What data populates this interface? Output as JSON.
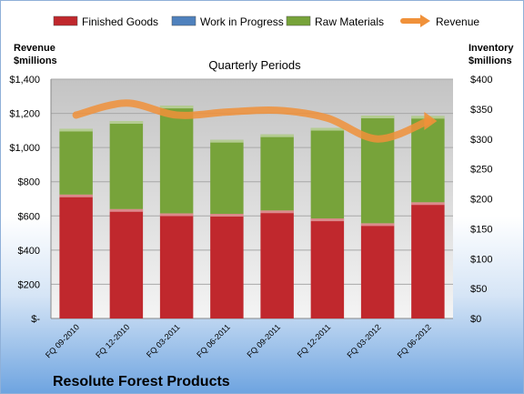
{
  "chart_data": {
    "type": "bar",
    "stacked": true,
    "title": "Quarterly Periods",
    "subtitle": "Resolute Forest Products",
    "categories": [
      "FQ 09-2010",
      "FQ 12-2010",
      "FQ 03-2011",
      "FQ 06-2011",
      "FQ 09-2011",
      "FQ 12-2011",
      "FQ 03-2012",
      "FQ 06-2012"
    ],
    "series": [
      {
        "name": "Finished Goods",
        "color": "#c0282d",
        "axis": "left",
        "values": [
          725,
          640,
          615,
          612,
          632,
          585,
          557,
          680
        ]
      },
      {
        "name": "Work in Progress",
        "color": "#4f81bd",
        "axis": "left",
        "values": [
          0,
          0,
          0,
          0,
          0,
          0,
          0,
          0
        ]
      },
      {
        "name": "Raw Materials",
        "color": "#77a33a",
        "axis": "left",
        "values": [
          385,
          515,
          630,
          433,
          445,
          530,
          630,
          505
        ]
      }
    ],
    "line_series": {
      "name": "Revenue",
      "color": "#f0913a",
      "axis": "right",
      "values": [
        340,
        360,
        340,
        345,
        348,
        335,
        300,
        330
      ]
    },
    "y_left": {
      "label_line1": "Revenue",
      "label_line2": "$millions",
      "range": [
        0,
        1400
      ],
      "ticks": [
        "$-",
        "$200",
        "$400",
        "$600",
        "$800",
        "$1,000",
        "$1,200",
        "$1,400"
      ]
    },
    "y_right": {
      "label_line1": "Inventory",
      "label_line2": "$millions",
      "range": [
        0,
        400
      ],
      "ticks": [
        "$0",
        "$50",
        "$100",
        "$150",
        "$200",
        "$250",
        "$300",
        "$350",
        "$400"
      ]
    },
    "grid": true,
    "legend": "top"
  }
}
